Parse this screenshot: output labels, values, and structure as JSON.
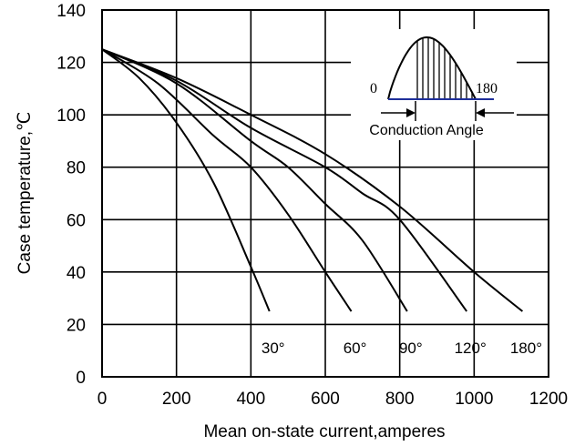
{
  "chart_data": {
    "type": "line",
    "xlabel": "Mean on-state current,amperes",
    "ylabel": "Case temperature,℃",
    "xlim": [
      0,
      1200
    ],
    "ylim": [
      0,
      140
    ],
    "x_ticks": [
      "0",
      "200",
      "400",
      "600",
      "800",
      "1000",
      "1200"
    ],
    "y_ticks": [
      "0",
      "20",
      "40",
      "60",
      "80",
      "100",
      "120",
      "140"
    ],
    "grid": true,
    "series": [
      {
        "name": "30°",
        "x": [
          0,
          100,
          200,
          300,
          400,
          450
        ],
        "y": [
          125,
          114,
          97,
          74,
          42,
          25
        ]
      },
      {
        "name": "60°",
        "x": [
          0,
          150,
          300,
          400,
          500,
          600,
          670
        ],
        "y": [
          125,
          112,
          92,
          80,
          62,
          40,
          25
        ]
      },
      {
        "name": "90°",
        "x": [
          0,
          200,
          400,
          500,
          600,
          700,
          820
        ],
        "y": [
          125,
          112,
          90,
          80,
          66,
          52,
          25
        ]
      },
      {
        "name": "120°",
        "x": [
          0,
          200,
          400,
          600,
          700,
          800,
          980
        ],
        "y": [
          125,
          113,
          95,
          80,
          70,
          60,
          25
        ]
      },
      {
        "name": "180°",
        "x": [
          0,
          200,
          400,
          600,
          800,
          1000,
          1130
        ],
        "y": [
          125,
          114,
          100,
          85,
          65,
          40,
          25
        ]
      }
    ],
    "inset": {
      "start_label": "0",
      "end_label": "180",
      "caption": "Conduction Angle"
    }
  }
}
